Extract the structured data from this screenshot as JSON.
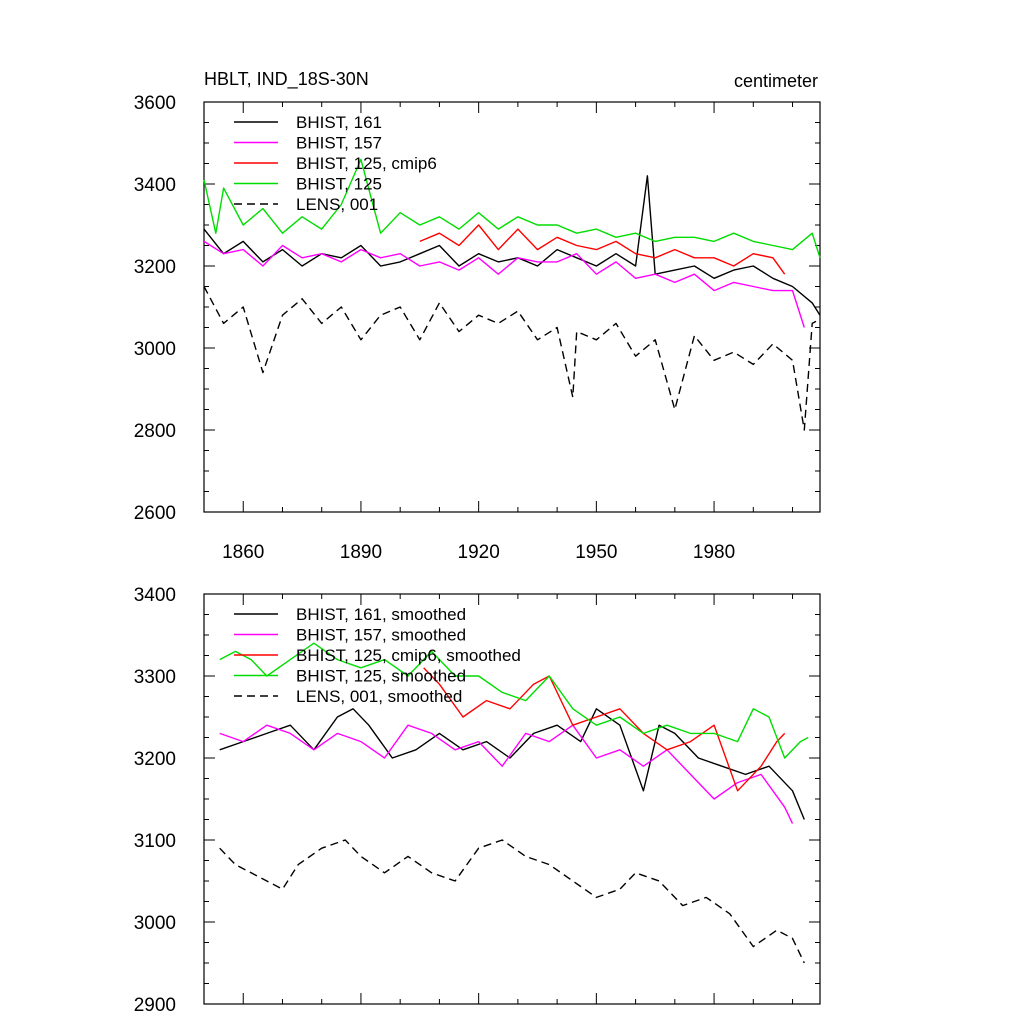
{
  "header": {
    "title": "HBLT, IND_18S-30N",
    "units": "centimeter"
  },
  "colors": {
    "black": "#000000",
    "magenta": "#ff00ff",
    "red": "#ff0000",
    "green": "#00dd00"
  },
  "chart_data": [
    {
      "type": "line",
      "title": "HBLT, IND_18S-30N",
      "units": "centimeter",
      "xlim": [
        1850,
        2007
      ],
      "ylim": [
        2600,
        3600
      ],
      "x_ticks": [
        1860,
        1890,
        1920,
        1950,
        1980
      ],
      "y_ticks": [
        2600,
        2800,
        3000,
        3200,
        3400,
        3600
      ],
      "legend": "top-left",
      "series": [
        {
          "name": "BHIST, 161",
          "color": "#000000",
          "dash": false,
          "x": [
            1850,
            1855,
            1860,
            1865,
            1870,
            1875,
            1880,
            1885,
            1890,
            1895,
            1900,
            1905,
            1910,
            1915,
            1920,
            1925,
            1930,
            1935,
            1940,
            1945,
            1950,
            1955,
            1960,
            1963,
            1965,
            1970,
            1975,
            1980,
            1985,
            1990,
            1995,
            2000,
            2005,
            2007
          ],
          "y": [
            3290,
            3230,
            3260,
            3210,
            3240,
            3200,
            3230,
            3220,
            3250,
            3200,
            3210,
            3230,
            3250,
            3200,
            3230,
            3210,
            3220,
            3200,
            3240,
            3220,
            3200,
            3230,
            3200,
            3420,
            3180,
            3190,
            3200,
            3170,
            3190,
            3200,
            3170,
            3150,
            3110,
            3080
          ]
        },
        {
          "name": "BHIST, 157",
          "color": "#ff00ff",
          "dash": false,
          "x": [
            1850,
            1855,
            1860,
            1865,
            1870,
            1875,
            1880,
            1885,
            1890,
            1895,
            1900,
            1905,
            1910,
            1915,
            1920,
            1925,
            1930,
            1935,
            1940,
            1945,
            1950,
            1955,
            1960,
            1965,
            1970,
            1975,
            1980,
            1985,
            1990,
            1995,
            2000,
            2003
          ],
          "y": [
            3260,
            3230,
            3240,
            3200,
            3250,
            3220,
            3230,
            3210,
            3240,
            3220,
            3230,
            3200,
            3210,
            3190,
            3220,
            3180,
            3220,
            3210,
            3210,
            3230,
            3180,
            3210,
            3170,
            3180,
            3160,
            3180,
            3140,
            3160,
            3150,
            3140,
            3140,
            3050
          ]
        },
        {
          "name": "BHIST, 125, cmip6",
          "color": "#ff0000",
          "dash": false,
          "x": [
            1905,
            1910,
            1915,
            1920,
            1925,
            1930,
            1935,
            1940,
            1945,
            1950,
            1955,
            1960,
            1965,
            1970,
            1975,
            1980,
            1985,
            1990,
            1995,
            1998
          ],
          "y": [
            3260,
            3280,
            3250,
            3300,
            3240,
            3290,
            3240,
            3270,
            3250,
            3240,
            3260,
            3230,
            3220,
            3240,
            3220,
            3220,
            3200,
            3230,
            3220,
            3180
          ]
        },
        {
          "name": "BHIST, 125",
          "color": "#00dd00",
          "dash": false,
          "x": [
            1850,
            1853,
            1855,
            1860,
            1865,
            1870,
            1875,
            1880,
            1885,
            1890,
            1895,
            1900,
            1905,
            1910,
            1915,
            1920,
            1925,
            1930,
            1935,
            1940,
            1945,
            1950,
            1955,
            1960,
            1965,
            1970,
            1975,
            1980,
            1985,
            1990,
            1995,
            2000,
            2005,
            2007
          ],
          "y": [
            3410,
            3280,
            3390,
            3300,
            3340,
            3280,
            3320,
            3290,
            3350,
            3460,
            3280,
            3330,
            3300,
            3320,
            3290,
            3330,
            3290,
            3320,
            3300,
            3300,
            3280,
            3290,
            3270,
            3280,
            3260,
            3270,
            3270,
            3260,
            3280,
            3260,
            3250,
            3240,
            3280,
            3220
          ]
        },
        {
          "name": "LENS, 001",
          "color": "#000000",
          "dash": true,
          "x": [
            1850,
            1855,
            1860,
            1865,
            1870,
            1875,
            1880,
            1885,
            1890,
            1895,
            1900,
            1905,
            1910,
            1915,
            1920,
            1925,
            1930,
            1935,
            1940,
            1944,
            1945,
            1950,
            1955,
            1960,
            1965,
            1970,
            1975,
            1980,
            1985,
            1990,
            1995,
            2000,
            2003,
            2005,
            2007
          ],
          "y": [
            3150,
            3060,
            3100,
            2940,
            3080,
            3120,
            3060,
            3100,
            3020,
            3080,
            3100,
            3020,
            3110,
            3040,
            3080,
            3060,
            3090,
            3020,
            3050,
            2880,
            3040,
            3020,
            3060,
            2980,
            3020,
            2850,
            3030,
            2970,
            2990,
            2960,
            3010,
            2970,
            2800,
            3060,
            3070
          ]
        }
      ]
    },
    {
      "type": "line",
      "title": "",
      "xlim": [
        1850,
        2007
      ],
      "ylim": [
        2900,
        3400
      ],
      "x_ticks": [
        1860,
        1890,
        1920,
        1950,
        1980
      ],
      "y_ticks": [
        2900,
        3000,
        3100,
        3200,
        3300,
        3400
      ],
      "legend": "top-left",
      "series": [
        {
          "name": "BHIST, 161, smoothed",
          "color": "#000000",
          "dash": false,
          "x": [
            1854,
            1860,
            1866,
            1872,
            1878,
            1884,
            1888,
            1892,
            1898,
            1904,
            1910,
            1916,
            1922,
            1928,
            1934,
            1940,
            1946,
            1950,
            1956,
            1962,
            1966,
            1970,
            1976,
            1982,
            1988,
            1994,
            2000,
            2003
          ],
          "y": [
            3210,
            3220,
            3230,
            3240,
            3210,
            3250,
            3260,
            3240,
            3200,
            3210,
            3230,
            3210,
            3220,
            3200,
            3230,
            3240,
            3220,
            3260,
            3240,
            3160,
            3240,
            3230,
            3200,
            3190,
            3180,
            3190,
            3160,
            3125
          ]
        },
        {
          "name": "BHIST, 157, smoothed",
          "color": "#ff00ff",
          "dash": false,
          "x": [
            1854,
            1860,
            1866,
            1872,
            1878,
            1884,
            1890,
            1896,
            1902,
            1908,
            1914,
            1920,
            1926,
            1932,
            1938,
            1944,
            1950,
            1956,
            1962,
            1968,
            1974,
            1980,
            1986,
            1992,
            1998,
            2000
          ],
          "y": [
            3230,
            3220,
            3240,
            3230,
            3210,
            3230,
            3220,
            3200,
            3240,
            3230,
            3210,
            3220,
            3190,
            3230,
            3220,
            3240,
            3200,
            3210,
            3190,
            3210,
            3180,
            3150,
            3170,
            3180,
            3140,
            3120
          ]
        },
        {
          "name": "BHIST, 125, cmip6, smoothed",
          "color": "#ff0000",
          "dash": false,
          "x": [
            1906,
            1910,
            1916,
            1922,
            1928,
            1934,
            1938,
            1944,
            1950,
            1956,
            1962,
            1968,
            1974,
            1980,
            1986,
            1992,
            1996,
            1998
          ],
          "y": [
            3310,
            3290,
            3250,
            3270,
            3260,
            3290,
            3300,
            3240,
            3250,
            3260,
            3230,
            3210,
            3220,
            3240,
            3160,
            3190,
            3220,
            3230
          ]
        },
        {
          "name": "BHIST, 125, smoothed",
          "color": "#00dd00",
          "dash": false,
          "x": [
            1854,
            1858,
            1862,
            1866,
            1872,
            1878,
            1884,
            1890,
            1896,
            1902,
            1908,
            1914,
            1920,
            1926,
            1932,
            1938,
            1944,
            1950,
            1956,
            1962,
            1968,
            1974,
            1980,
            1986,
            1990,
            1994,
            1998,
            2002,
            2004
          ],
          "y": [
            3320,
            3330,
            3320,
            3300,
            3320,
            3340,
            3320,
            3310,
            3320,
            3300,
            3330,
            3300,
            3300,
            3280,
            3270,
            3300,
            3260,
            3240,
            3250,
            3230,
            3240,
            3230,
            3230,
            3220,
            3260,
            3250,
            3200,
            3220,
            3225
          ]
        },
        {
          "name": "LENS, 001, smoothed",
          "color": "#000000",
          "dash": true,
          "x": [
            1854,
            1858,
            1862,
            1866,
            1870,
            1874,
            1880,
            1886,
            1890,
            1896,
            1902,
            1908,
            1914,
            1920,
            1926,
            1932,
            1938,
            1944,
            1950,
            1956,
            1960,
            1966,
            1972,
            1978,
            1984,
            1990,
            1996,
            2000,
            2003
          ],
          "y": [
            3090,
            3070,
            3060,
            3050,
            3040,
            3070,
            3090,
            3100,
            3080,
            3060,
            3080,
            3060,
            3050,
            3090,
            3100,
            3080,
            3070,
            3050,
            3030,
            3040,
            3060,
            3050,
            3020,
            3030,
            3010,
            2970,
            2990,
            2980,
            2950
          ]
        }
      ]
    }
  ]
}
